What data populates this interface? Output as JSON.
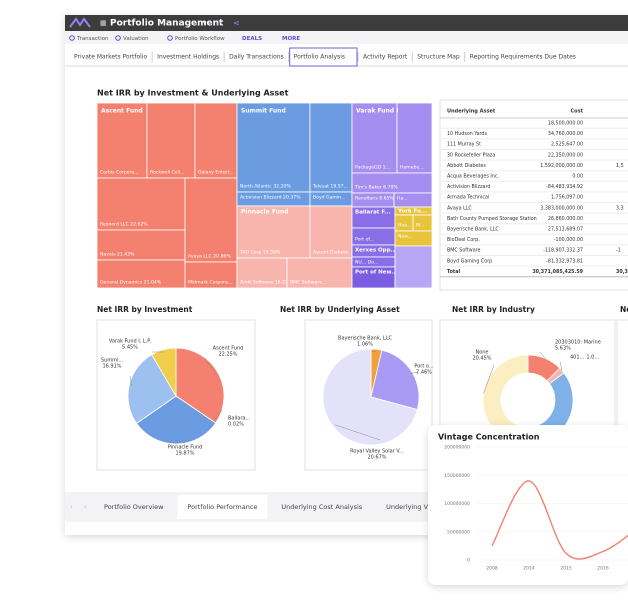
{
  "app": {
    "title": "Portfolio Management",
    "nav": [
      "Transaction",
      "Valuation",
      "Portfolio Workflow",
      "DEALS",
      "MORE"
    ]
  },
  "tabs": [
    {
      "label": "Private Markets Portfolio"
    },
    {
      "label": "Investment Holdings"
    },
    {
      "label": "Daily Transactions"
    },
    {
      "label": "Portfolio Analysis",
      "active": true
    },
    {
      "label": "Activity Report"
    },
    {
      "label": "Structure Map"
    },
    {
      "label": "Reporting Requirements Due Dates"
    }
  ],
  "treemap": {
    "title": "Net IRR by Investment & Underlying Asset",
    "groups": [
      "Ascent Fund",
      "Summit Fund",
      "Pinnacle Fund",
      "Varak Fund I"
    ],
    "cells": [
      {
        "label": "Corbis Corpora...",
        "color": "#f4806f"
      },
      {
        "label": "Rockwell Coll...",
        "color": "#f4806f"
      },
      {
        "label": "Galaxy Entert...",
        "color": "#f4806f"
      },
      {
        "label": "Rexnord LLC 22.62%",
        "color": "#f4806f"
      },
      {
        "label": "Navels 21.43%",
        "color": "#f4806f"
      },
      {
        "label": "General Dynamics 21.04%",
        "color": "#f4806f"
      },
      {
        "label": "Avaya LLC 20.86%",
        "color": "#f4806f"
      },
      {
        "label": "Midmark Corpora...",
        "color": "#f4806f"
      },
      {
        "label": "North Atlantic 32.20%",
        "color": "#6b9be0"
      },
      {
        "label": "Telesat 19.57...",
        "color": "#6b9be0"
      },
      {
        "label": "Activision Blizzard 20.37%",
        "color": "#6b9be0"
      },
      {
        "label": "Boyd Gamin...",
        "color": "#6b9be0"
      },
      {
        "label": "TAO Corp 19.59%",
        "color": "#f7b5ad"
      },
      {
        "label": "Ascent Diabete...",
        "color": "#f7b5ad"
      },
      {
        "label": "Amkl Software 16.22%",
        "color": "#f7b5ad"
      },
      {
        "label": "BMC Software...",
        "color": "#f7b5ad"
      },
      {
        "label": "PackageGD 1...",
        "color": "#a68ef0"
      },
      {
        "label": "Homebu...",
        "color": "#a68ef0"
      },
      {
        "label": "Tim's Baker 8.79%",
        "color": "#a68ef0"
      },
      {
        "label": "Renoltans 8.65%",
        "color": "#a68ef0"
      },
      {
        "label": "Ha...",
        "color": "#a68ef0"
      },
      {
        "label": "Ballarat F...",
        "color": "#8a6ee8"
      },
      {
        "label": "Port of...",
        "color": "#8a6ee8"
      },
      {
        "label": "Xerxes Opp...",
        "color": "#8a6ee8"
      },
      {
        "label": "NU... Do...",
        "color": "#8a6ee8"
      },
      {
        "label": "Port of New...",
        "color": "#7a5de0"
      },
      {
        "label": "York Fu...",
        "color": "#e8c43c"
      },
      {
        "label": "Hea...",
        "color": "#e8c43c"
      },
      {
        "label": "M...",
        "color": "#e8c43c"
      },
      {
        "label": "New...",
        "color": "#e8c43c"
      }
    ]
  },
  "table": {
    "columns": [
      "Underlying Asset",
      "Cost"
    ],
    "rows": [
      [
        "",
        "18,500,000.00",
        ""
      ],
      [
        "10 Hudson Yards",
        "34,760,000.00",
        ""
      ],
      [
        "111 Murray St",
        "2,525,647.00",
        ""
      ],
      [
        "30 Rockefeller Plaza",
        "22,350,000.00",
        ""
      ],
      [
        "Abbott Diabetes",
        "1,592,000,000.00",
        "1,5"
      ],
      [
        "Acqua Beverages Inc.",
        "0.00",
        ""
      ],
      [
        "Activision Blizzard",
        "-84,483,934.92",
        ""
      ],
      [
        "Armada Technical",
        "1,756,097.00",
        ""
      ],
      [
        "Avaya LLC",
        "3,383,000,000.00",
        "3,3"
      ],
      [
        "Bath County Pumped Storage Station",
        "26,860,000.00",
        ""
      ],
      [
        "Bayerische Bank, LLC",
        "27,513,689.07",
        ""
      ],
      [
        "BioDeel Corp.",
        "-100,000.00",
        ""
      ],
      [
        "BMC Software",
        "-118,907,332.37",
        "-1"
      ],
      [
        "Boyd Gaming Corp",
        "-81,332,973.81",
        ""
      ]
    ],
    "total": [
      "Total",
      "30,371,085,425.59",
      "30,3"
    ]
  },
  "pies": [
    {
      "type": "pie",
      "title": "Net IRR by Investment",
      "categories": [
        "Ascent Fund",
        "Ballara...",
        "Pinnacle Fund",
        "Summi...",
        "Varak Fund I, L.P."
      ],
      "values": [
        22.25,
        0.02,
        19.87,
        16.91,
        5.45
      ],
      "value_labels": [
        "22.25%",
        "0.02%",
        "19.87%",
        "16.91%",
        "5.45%"
      ],
      "colors": [
        "#f4806f",
        "#e05a4a",
        "#6b9be0",
        "#9cc0f0",
        "#f0cd4a"
      ]
    },
    {
      "type": "pie",
      "title": "Net IRR by Underlying Asset",
      "categories": [
        "Bayerische Bank, LLC",
        "Port o...",
        "Royal Valley Solar V..."
      ],
      "values": [
        1.06,
        7.46,
        20.67
      ],
      "value_labels": [
        "1.06%",
        "7.46%",
        "20.67%"
      ],
      "colors": [
        "#f0a03c",
        "#a89af5",
        "#e4e2fb"
      ]
    },
    {
      "type": "donut",
      "title": "Net IRR by Industry",
      "categories": [
        "20303010: Marine",
        "401...",
        null,
        "None"
      ],
      "values": [
        5.63,
        1.0,
        18,
        20.45
      ],
      "value_labels": [
        "5.63%",
        "1.0...",
        null,
        "20.45%"
      ],
      "colors": [
        "#f4806f",
        "#f7b5ad",
        "#7fb0ea",
        "#fbeec0"
      ]
    },
    {
      "type": "pie",
      "title": "Ne"
    }
  ],
  "bottom_tabs": [
    {
      "label": "Portfolio Overview"
    },
    {
      "label": "Portfolio Performance",
      "active": true
    },
    {
      "label": "Underlying Cost Analysis"
    },
    {
      "label": "Underlying V"
    }
  ],
  "vintage": {
    "type": "line",
    "title": "Vintage Concentration",
    "categories": [
      "2008",
      "2014",
      "2015",
      "2016",
      null
    ],
    "values": [
      25000000,
      140000000,
      12000000,
      15000000,
      60000000
    ],
    "color": "#f4806f",
    "ylim": [
      0,
      200000000
    ],
    "yticks": [
      0,
      50000000,
      100000000,
      150000000,
      200000000
    ],
    "grid": true
  }
}
